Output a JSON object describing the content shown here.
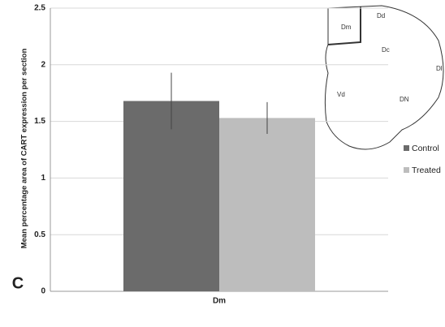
{
  "chart_data": {
    "type": "bar",
    "panel_label": "C",
    "y_label": "Mean percentage area of CART expression per section",
    "categories": [
      "Dm"
    ],
    "series": [
      {
        "name": "Control",
        "color": "#6b6b6b",
        "values": [
          1.68
        ],
        "errors": [
          0.25
        ]
      },
      {
        "name": "Treated",
        "color": "#bdbdbd",
        "values": [
          1.53
        ],
        "errors": [
          0.14
        ]
      }
    ],
    "ylim": [
      0,
      2.5
    ],
    "yticks": [
      0,
      0.5,
      1,
      1.5,
      2,
      2.5
    ],
    "grid": true,
    "legend": "right",
    "annotations": [
      "Dm",
      "Dd",
      "Dc",
      "Dl",
      "Vd",
      "DN"
    ]
  }
}
